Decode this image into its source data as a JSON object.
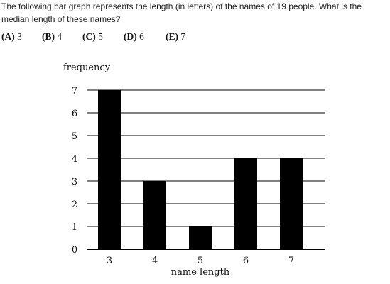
{
  "question": {
    "text": "The following bar graph represents the length (in letters) of the names of 19 people. What is the median length of these names?"
  },
  "choices": [
    {
      "letter": "(A)",
      "value": "3"
    },
    {
      "letter": "(B)",
      "value": "4"
    },
    {
      "letter": "(C)",
      "value": "5"
    },
    {
      "letter": "(D)",
      "value": "6"
    },
    {
      "letter": "(E)",
      "value": "7"
    }
  ],
  "chart_data": {
    "type": "bar",
    "categories": [
      "3",
      "4",
      "5",
      "6",
      "7"
    ],
    "values": [
      7,
      3,
      1,
      4,
      4
    ],
    "xlabel": "name length",
    "ylabel": "frequency",
    "ylim": [
      0,
      7
    ],
    "yticks": [
      "0",
      "1",
      "2",
      "3",
      "4",
      "5",
      "6",
      "7"
    ],
    "grid": true,
    "bar_color": "#000000"
  }
}
